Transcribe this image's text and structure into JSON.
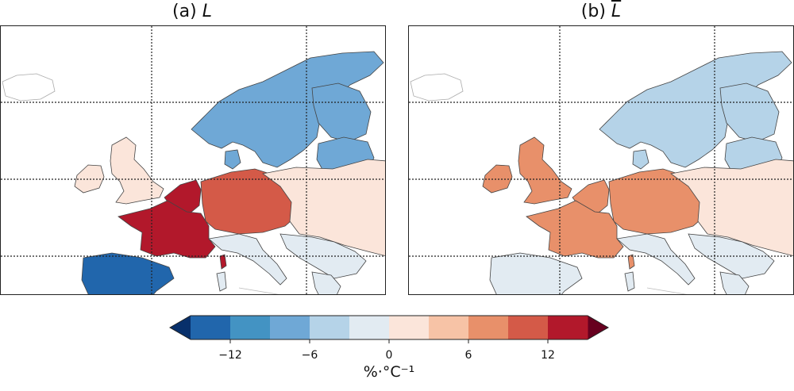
{
  "panels": [
    {
      "label_prefix": "(a) ",
      "symbol": "L",
      "regions": {
        "iceland": 0,
        "ireland": 2,
        "great_britain": 2,
        "scandinavia": -7,
        "denmark": -7,
        "finland": -7,
        "baltics": -7,
        "benelux": 13,
        "germany_central": 11,
        "france": 13,
        "iberia": -14,
        "eastern_europe": 2,
        "italy": -2,
        "balkans": -2,
        "corsica": 13,
        "sardinia": -2,
        "greece": -2
      }
    },
    {
      "label_prefix": "(b) ",
      "symbol": "L",
      "regions": {
        "iceland": 0,
        "ireland": 8,
        "great_britain": 8,
        "scandinavia": -5,
        "denmark": -5,
        "finland": -5,
        "baltics": -5,
        "benelux": 8,
        "germany_central": 8,
        "france": 8,
        "iberia": -2,
        "eastern_europe": 2,
        "italy": -2,
        "balkans": -2,
        "corsica": 8,
        "sardinia": -2,
        "greece": -2
      }
    }
  ],
  "colorbar": {
    "min": -15,
    "max": 15,
    "step": 3,
    "colors": [
      "#08306b",
      "#2166ac",
      "#4393c3",
      "#6fa8d6",
      "#b5d3e8",
      "#e2ebf2",
      "#fbe5da",
      "#f7c3a6",
      "#e8906a",
      "#d45a48",
      "#b2182b",
      "#67001f"
    ],
    "ticks": [
      {
        "value": -12,
        "label": "−12"
      },
      {
        "value": -6,
        "label": "−6"
      },
      {
        "value": 0,
        "label": "0"
      },
      {
        "value": 6,
        "label": "6"
      },
      {
        "value": 12,
        "label": "12"
      }
    ],
    "unit": "%·°C⁻¹"
  }
}
